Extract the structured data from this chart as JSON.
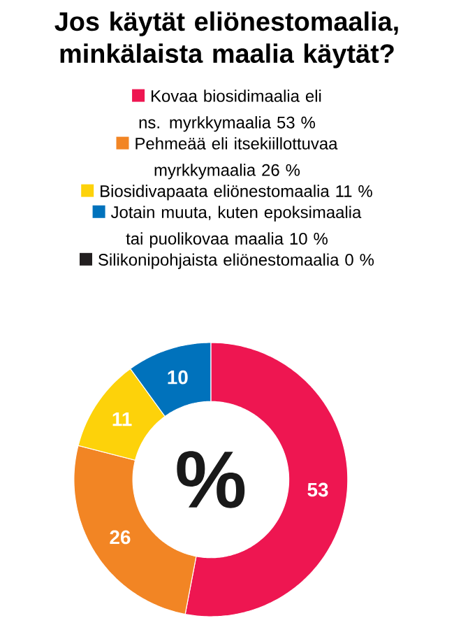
{
  "chart_data": {
    "type": "donut",
    "title": "Jos käytät eliönestomaalia, minkälaista maalia käytät?",
    "categories": [
      "Kovaa biosidimaalia eli ns. myrkkymaalia 53 %",
      "Pehmeää eli itsekiillottuvaa myrkkymaalia 26 %",
      "Biosidivapaata eliönestomaalia 11 %",
      "Jotain muuta, kuten epoksimaalia tai puolikovaa maalia 10 %",
      "Silikonipohjaista eliönestomaalia 0 %"
    ],
    "values": [
      53,
      26,
      11,
      10,
      0
    ],
    "colors": [
      "#ee1651",
      "#f28524",
      "#fdd20a",
      "#0072bc",
      "#231f20"
    ],
    "value_labels": [
      "53",
      "26",
      "11",
      "10",
      null
    ],
    "legend": "top",
    "annotations": [
      "%"
    ]
  }
}
